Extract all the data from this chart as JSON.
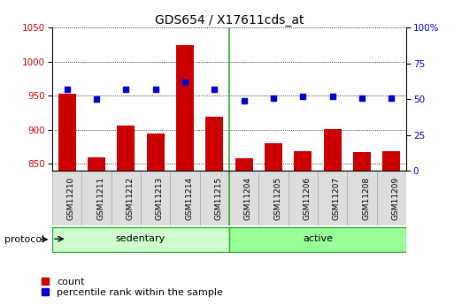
{
  "title": "GDS654 / X17611cds_at",
  "samples": [
    "GSM11210",
    "GSM11211",
    "GSM11212",
    "GSM11213",
    "GSM11214",
    "GSM11215",
    "GSM11204",
    "GSM11205",
    "GSM11206",
    "GSM11207",
    "GSM11208",
    "GSM11209"
  ],
  "counts": [
    953,
    860,
    906,
    895,
    1024,
    919,
    858,
    881,
    869,
    901,
    868,
    869
  ],
  "percentiles": [
    57,
    50,
    57,
    57,
    62,
    57,
    49,
    51,
    52,
    52,
    51,
    51
  ],
  "groups": [
    {
      "name": "sedentary",
      "start": 0,
      "end": 6,
      "color": "#ccffcc"
    },
    {
      "name": "active",
      "start": 6,
      "end": 12,
      "color": "#99ff99"
    }
  ],
  "ylim_left": [
    840,
    1050
  ],
  "ylim_right": [
    0,
    100
  ],
  "yticks_left": [
    850,
    900,
    950,
    1000,
    1050
  ],
  "yticks_right": [
    0,
    25,
    50,
    75,
    100
  ],
  "ytick_right_labels": [
    "0",
    "25",
    "50",
    "75",
    "100%"
  ],
  "bar_color": "#cc0000",
  "dot_color": "#0000cc",
  "title_fontsize": 10,
  "tick_fontsize": 7.5,
  "sample_fontsize": 6.5,
  "label_fontsize": 8,
  "group_fontsize": 8,
  "legend_label_count": "count",
  "legend_label_percentile": "percentile rank within the sample",
  "protocol_label": "protocol",
  "background_color": "#ffffff",
  "plot_bg_color": "#ffffff",
  "sample_box_color": "#dddddd",
  "sample_box_edge": "#aaaaaa"
}
